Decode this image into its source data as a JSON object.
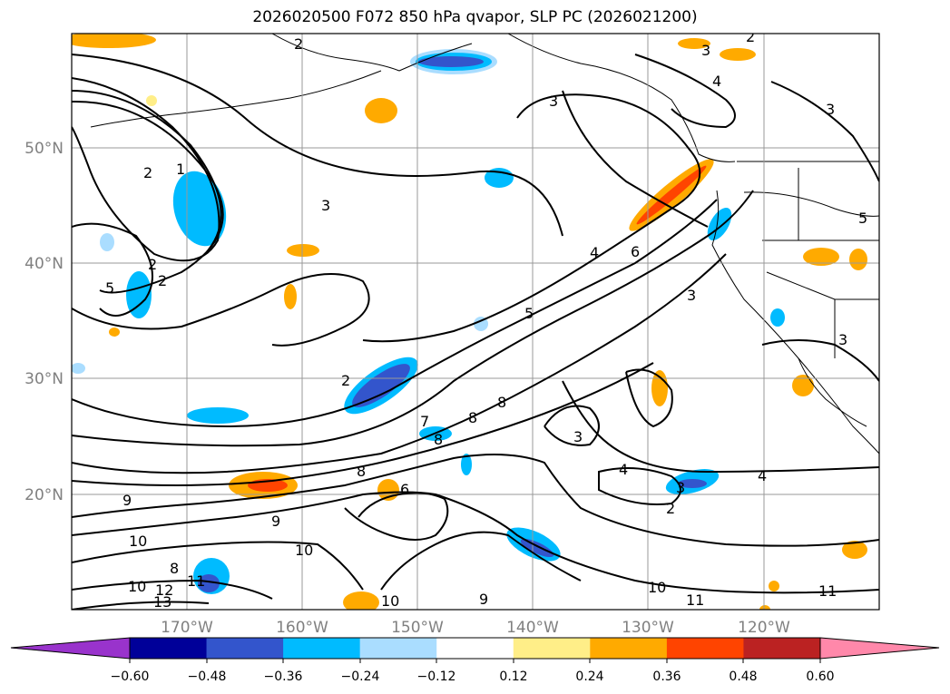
{
  "title": "2026020500 F072 850 hPa qvapor, SLP PC (2026021200)",
  "map": {
    "lon_labels": [
      "170°W",
      "160°W",
      "150°W",
      "140°W",
      "130°W",
      "120°W"
    ],
    "lat_labels": [
      "50°N",
      "40°N",
      "30°N",
      "20°N"
    ],
    "contour_labels": [
      "2",
      "2",
      "3",
      "3",
      "4",
      "3",
      "2",
      "1",
      "3",
      "2",
      "5",
      "2",
      "4",
      "6",
      "5",
      "3",
      "2",
      "7",
      "8",
      "8",
      "8",
      "8",
      "3",
      "4",
      "3",
      "2",
      "4",
      "6",
      "9",
      "10",
      "8",
      "11",
      "12",
      "13",
      "10",
      "9",
      "10",
      "10",
      "9",
      "10",
      "11",
      "11",
      "3",
      "5"
    ]
  },
  "colorbar": {
    "tick_labels": [
      "−0.60",
      "−0.48",
      "−0.36",
      "−0.24",
      "−0.12",
      "0.12",
      "0.24",
      "0.36",
      "0.48",
      "0.60"
    ],
    "colors": [
      "#9933cc",
      "#000099",
      "#3355cc",
      "#00bbff",
      "#aaddff",
      "#ffffff",
      "#ffee88",
      "#ffaa00",
      "#ff4400",
      "#bb2222",
      "#ff88aa"
    ],
    "extend": "both"
  }
}
